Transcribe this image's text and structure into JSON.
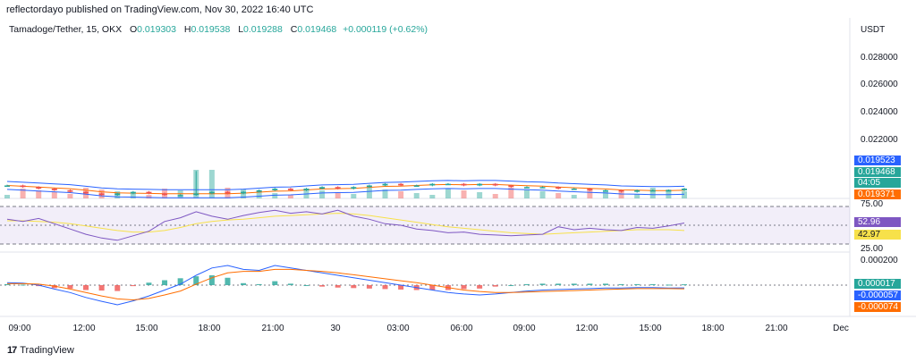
{
  "publisher": "reflectordayo published on TradingView.com, Nov 30, 2022 16:40 UTC",
  "legend": {
    "symbol": "Tamadoge/Tether, 15, OKX",
    "open_label": "O",
    "open": "0.019303",
    "high_label": "H",
    "high": "0.019538",
    "low_label": "L",
    "low": "0.019288",
    "close_label": "C",
    "close": "0.019468",
    "change": "+0.000119 (+0.62%)"
  },
  "price_axis": {
    "unit": "USDT",
    "ticks": [
      "0.028000",
      "0.026000",
      "0.024000",
      "0.022000"
    ]
  },
  "price_tags": [
    {
      "text": "0.019523",
      "color": "#2962ff"
    },
    {
      "text": "0.019468",
      "color": "#26a69a"
    },
    {
      "text": "04:05",
      "color": "#26a69a"
    },
    {
      "text": "0.019371",
      "color": "#ff6d00"
    }
  ],
  "rsi_axis": {
    "ticks": [
      "75.00",
      "25.00"
    ]
  },
  "rsi_tags": [
    {
      "text": "52.96",
      "color": "#7e57c2"
    },
    {
      "text": "42.97",
      "color": "#f7e14a",
      "text_color": "#131722"
    }
  ],
  "macd_axis": {
    "ticks": [
      "0.000200"
    ]
  },
  "macd_tags": [
    {
      "text": "0.000017",
      "color": "#26a69a"
    },
    {
      "text": "-0.000057",
      "color": "#2962ff"
    },
    {
      "text": "-0.000074",
      "color": "#ff6d00"
    }
  ],
  "time_axis": [
    "09:00",
    "12:00",
    "15:00",
    "18:00",
    "21:00",
    "30",
    "03:00",
    "06:00",
    "09:00",
    "12:00",
    "15:00",
    "18:00",
    "21:00",
    "Dec"
  ],
  "footer": {
    "brand": "TradingView"
  },
  "colors": {
    "up": "#26a69a",
    "down": "#ef5350",
    "bb_upper": "#2962ff",
    "bb_basis": "#ff6d00",
    "rsi": "#7e57c2",
    "rsi_ma": "#f7e14a",
    "macd": "#2962ff",
    "signal": "#ff6d00"
  },
  "chart_data": {
    "type": "line",
    "price_ylim": [
      0.019,
      0.0285
    ],
    "closes": [
      0.0197,
      0.0196,
      0.0195,
      0.0194,
      0.0193,
      0.0192,
      0.0191,
      0.0192,
      0.0193,
      0.0192,
      0.0191,
      0.0191,
      0.0192,
      0.0193,
      0.0192,
      0.0193,
      0.0194,
      0.0195,
      0.0194,
      0.0195,
      0.0196,
      0.0195,
      0.0196,
      0.0197,
      0.0198,
      0.0197,
      0.0197,
      0.0198,
      0.0198,
      0.0197,
      0.0198,
      0.0197,
      0.0196,
      0.0196,
      0.0196,
      0.0195,
      0.0195,
      0.0194,
      0.0194,
      0.0193,
      0.0194,
      0.0194,
      0.0194,
      0.0195
    ],
    "spike_index": 12,
    "spike_high": 0.0206,
    "rsi_ylim": [
      15,
      85
    ],
    "rsi": [
      58,
      55,
      59,
      52,
      45,
      38,
      33,
      30,
      36,
      42,
      55,
      60,
      68,
      62,
      58,
      63,
      67,
      70,
      66,
      68,
      65,
      70,
      62,
      58,
      52,
      50,
      45,
      43,
      40,
      41,
      38,
      37,
      36,
      37,
      38,
      48,
      44,
      46,
      44,
      43,
      47,
      46,
      49,
      53
    ],
    "rsi_ma": [
      56,
      56,
      55,
      54,
      52,
      49,
      46,
      43,
      41,
      41,
      43,
      47,
      52,
      55,
      57,
      58,
      60,
      62,
      63,
      64,
      65,
      66,
      65,
      63,
      60,
      57,
      54,
      51,
      48,
      46,
      44,
      42,
      40,
      39,
      38,
      39,
      40,
      41,
      42,
      43,
      44,
      44,
      44,
      43
    ],
    "macd_ylim": [
      -0.0006,
      0.0006
    ],
    "macd": [
      5e-05,
      4e-05,
      0.0,
      -8e-05,
      -0.00015,
      -0.00025,
      -0.00033,
      -0.0004,
      -0.00032,
      -0.00022,
      -0.0001,
      2e-05,
      0.0002,
      0.00035,
      0.0004,
      0.00032,
      0.0003,
      0.0004,
      0.00035,
      0.0003,
      0.00025,
      0.0002,
      0.00015,
      0.0001,
      5e-05,
      0.0,
      -5e-05,
      -0.0001,
      -0.00015,
      -0.00018,
      -0.0002,
      -0.00018,
      -0.00015,
      -0.00012,
      -0.0001,
      -9e-05,
      -8e-05,
      -7e-05,
      -6e-05,
      -6e-05,
      -5e-05,
      -5e-05,
      -6e-05,
      -5.7e-05
    ],
    "signal": [
      3e-05,
      3e-05,
      2e-05,
      -2e-05,
      -8e-05,
      -0.00015,
      -0.00022,
      -0.00028,
      -0.0003,
      -0.00027,
      -0.0002,
      -0.00012,
      2e-05,
      0.00015,
      0.00025,
      0.00028,
      0.00028,
      0.00032,
      0.00032,
      0.0003,
      0.00028,
      0.00025,
      0.00021,
      0.00017,
      0.00013,
      9e-05,
      5e-05,
      0.0,
      -5e-05,
      -0.0001,
      -0.00013,
      -0.00015,
      -0.00015,
      -0.00014,
      -0.00013,
      -0.00012,
      -0.00011,
      -0.0001,
      -9e-05,
      -8e-05,
      -7e-05,
      -7e-05,
      -7e-05,
      -7.4e-05
    ]
  }
}
